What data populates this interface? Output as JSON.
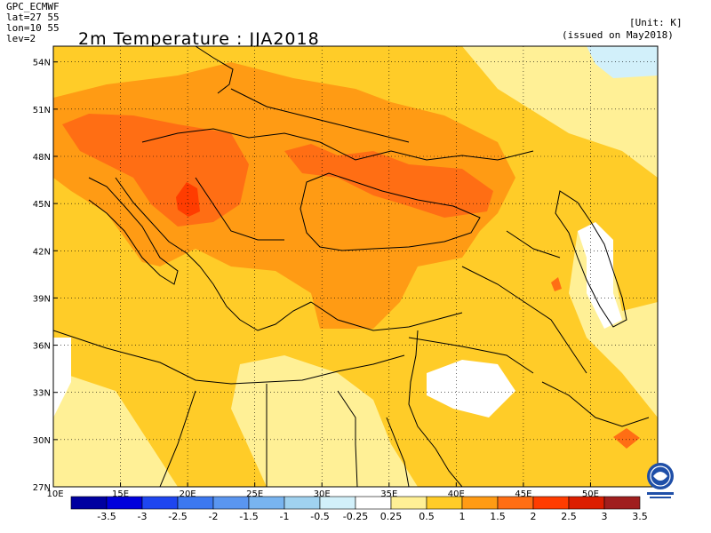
{
  "header": {
    "model": "GPC_ECMWF",
    "lat": "lat=27 55",
    "lon": "lon=10 55",
    "lev": "lev=2"
  },
  "map": {
    "title": "2m Temperature : JJA2018",
    "unit": "[Unit: K]",
    "issued": "(issued on May2018)",
    "lat_ticks": [
      "54N",
      "51N",
      "48N",
      "45N",
      "42N",
      "39N",
      "36N",
      "33N",
      "30N",
      "27N"
    ],
    "lon_ticks": [
      "10E",
      "15E",
      "20E",
      "25E",
      "30E",
      "35E",
      "40E",
      "45E",
      "50E"
    ],
    "logo": "wmo-logo"
  },
  "legend": {
    "labels": [
      "-3.5",
      "-3",
      "-2.5",
      "-2",
      "-1.5",
      "-1",
      "-0.5",
      "-0.25",
      "0.25",
      "0.5",
      "1",
      "1.5",
      "2",
      "2.5",
      "3",
      "3.5"
    ],
    "colors": [
      "#0000a0",
      "#0000dc",
      "#1e46f0",
      "#3c78f0",
      "#5a96f0",
      "#78b4f0",
      "#a0d2f0",
      "#d2f0fa",
      "#ffffff",
      "#fff096",
      "#ffcc28",
      "#ff9b14",
      "#ff6e14",
      "#ff3c00",
      "#dc1e00",
      "#a01e1e"
    ]
  }
}
